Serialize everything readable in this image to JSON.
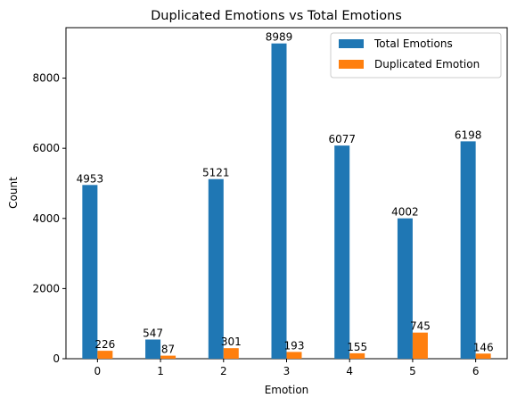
{
  "chart_data": {
    "type": "bar",
    "title": "Duplicated Emotions vs Total Emotions",
    "xlabel": "Emotion",
    "ylabel": "Count",
    "categories": [
      "0",
      "1",
      "2",
      "3",
      "4",
      "5",
      "6"
    ],
    "series": [
      {
        "name": "Total Emotions",
        "color": "#1f77b4",
        "values": [
          4953,
          547,
          5121,
          8989,
          6077,
          4002,
          6198
        ]
      },
      {
        "name": "Duplicated Emotion",
        "color": "#ff7f0e",
        "values": [
          226,
          87,
          301,
          193,
          155,
          745,
          146
        ]
      }
    ],
    "yticks": [
      0,
      2000,
      4000,
      6000,
      8000
    ],
    "ylim": [
      0,
      9439
    ],
    "grid": false,
    "legend_position": "top-right"
  }
}
